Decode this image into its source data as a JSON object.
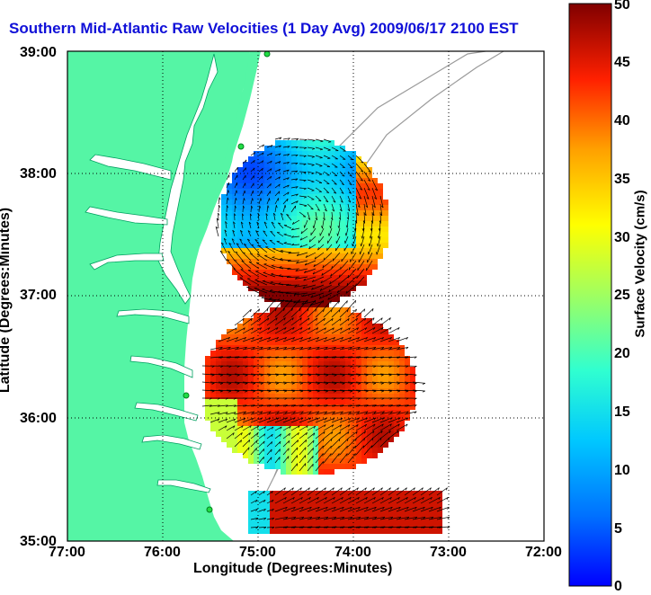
{
  "title": "Southern Mid-Atlantic Raw Velocities (1 Day Avg) 2009/06/17 2100 EST",
  "xlabel": "Longitude (Degrees:Minutes)",
  "ylabel": "Latitude (Degrees:Minutes)",
  "x_ticks": [
    "77:00",
    "76:00",
    "75:00",
    "74:00",
    "73:00",
    "72:00"
  ],
  "y_ticks": [
    "39:00",
    "38:00",
    "37:00",
    "36:00",
    "35:00"
  ],
  "colorbar": {
    "label": "Surface Velocity (cm/s)",
    "ticks": [
      "0",
      "5",
      "10",
      "15",
      "20",
      "25",
      "30",
      "35",
      "40",
      "45",
      "50"
    ],
    "range": [
      0,
      50
    ]
  },
  "colors": {
    "land": "#55f5a5",
    "title": "#1010d8"
  }
}
